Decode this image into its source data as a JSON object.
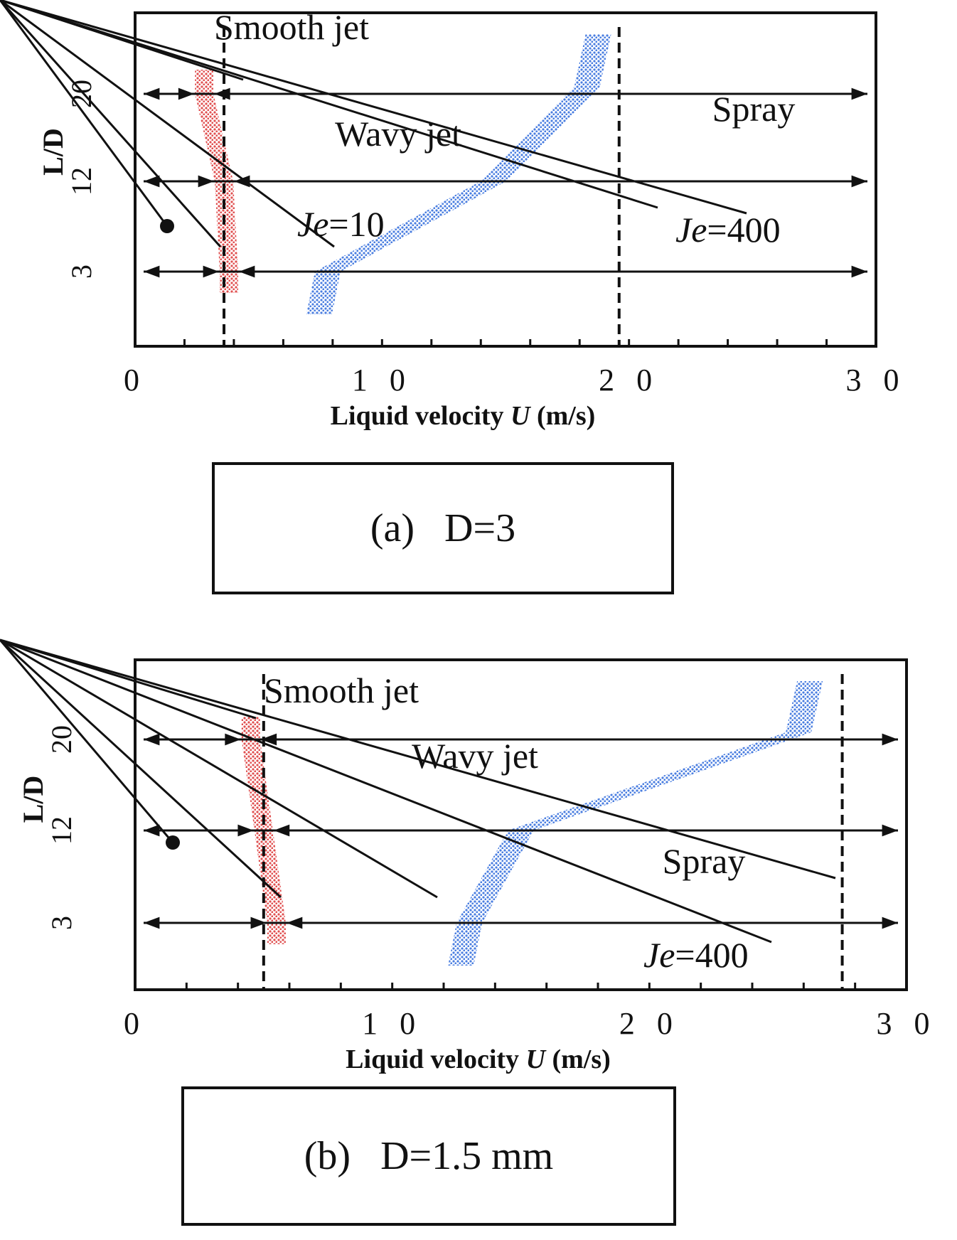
{
  "chart_data": [
    {
      "type": "regime-map",
      "caption": "(a)   D=3",
      "xlabel": "Liquid velocity",
      "xlabel_symbol": "U",
      "xlabel_unit": "(m/s)",
      "ylabel": "L/D",
      "xlim": [
        0,
        30
      ],
      "x_tick_labels": [
        "0",
        "1 0",
        "2 0",
        "3 0"
      ],
      "x_ticks": [
        0,
        10,
        20,
        30
      ],
      "y_levels": [
        "3",
        "12",
        "20"
      ],
      "regions": [
        "Smooth jet",
        "Wavy jet",
        "Spray"
      ],
      "je_labels": [
        {
          "je": "Je",
          "value": "=10",
          "x": 8.2,
          "level": 8
        },
        {
          "je": "Je",
          "value": "=400",
          "x": 22.5,
          "level": 7
        }
      ],
      "dashed_lines_x": [
        3.6,
        19.6
      ],
      "smooth_wavy_boundary": [
        {
          "level": "3",
          "x": 3.8
        },
        {
          "level": "12",
          "x": 3.6
        },
        {
          "level": "20",
          "x": 2.8
        }
      ],
      "wavy_spray_boundary": [
        {
          "level": "3",
          "x": 7.8
        },
        {
          "level": "12",
          "x": 14.5
        },
        {
          "level": "20",
          "x": 18.3
        }
      ],
      "band_colors": {
        "smooth": "#e05050",
        "wavy": "#4a7ee0"
      }
    },
    {
      "type": "regime-map",
      "caption": "(b)   D=1.5 mm",
      "xlabel": "Liquid velocity",
      "xlabel_symbol": "U",
      "xlabel_unit": "(m/s)",
      "ylabel": "L/D",
      "xlim": [
        0,
        30
      ],
      "x_tick_labels": [
        "0",
        "1 0",
        "2 0",
        "3 0"
      ],
      "x_ticks": [
        0,
        10,
        20,
        30
      ],
      "y_levels": [
        "3",
        "12",
        "20"
      ],
      "regions": [
        "Smooth jet",
        "Wavy jet",
        "Spray"
      ],
      "je_labels": [
        {
          "je": "Je",
          "value": "=400",
          "x": 20.0,
          "level": 1
        }
      ],
      "dashed_lines_x": [
        5.0,
        27.5
      ],
      "smooth_wavy_boundary": [
        {
          "level": "3",
          "x": 5.5
        },
        {
          "level": "12",
          "x": 5.0
        },
        {
          "level": "20",
          "x": 4.5
        }
      ],
      "wavy_spray_boundary": [
        {
          "level": "3",
          "x": 13.0
        },
        {
          "level": "12",
          "x": 15.0
        },
        {
          "level": "20",
          "x": 25.8
        }
      ],
      "band_colors": {
        "smooth": "#e05050",
        "wavy": "#4a7ee0"
      }
    }
  ]
}
